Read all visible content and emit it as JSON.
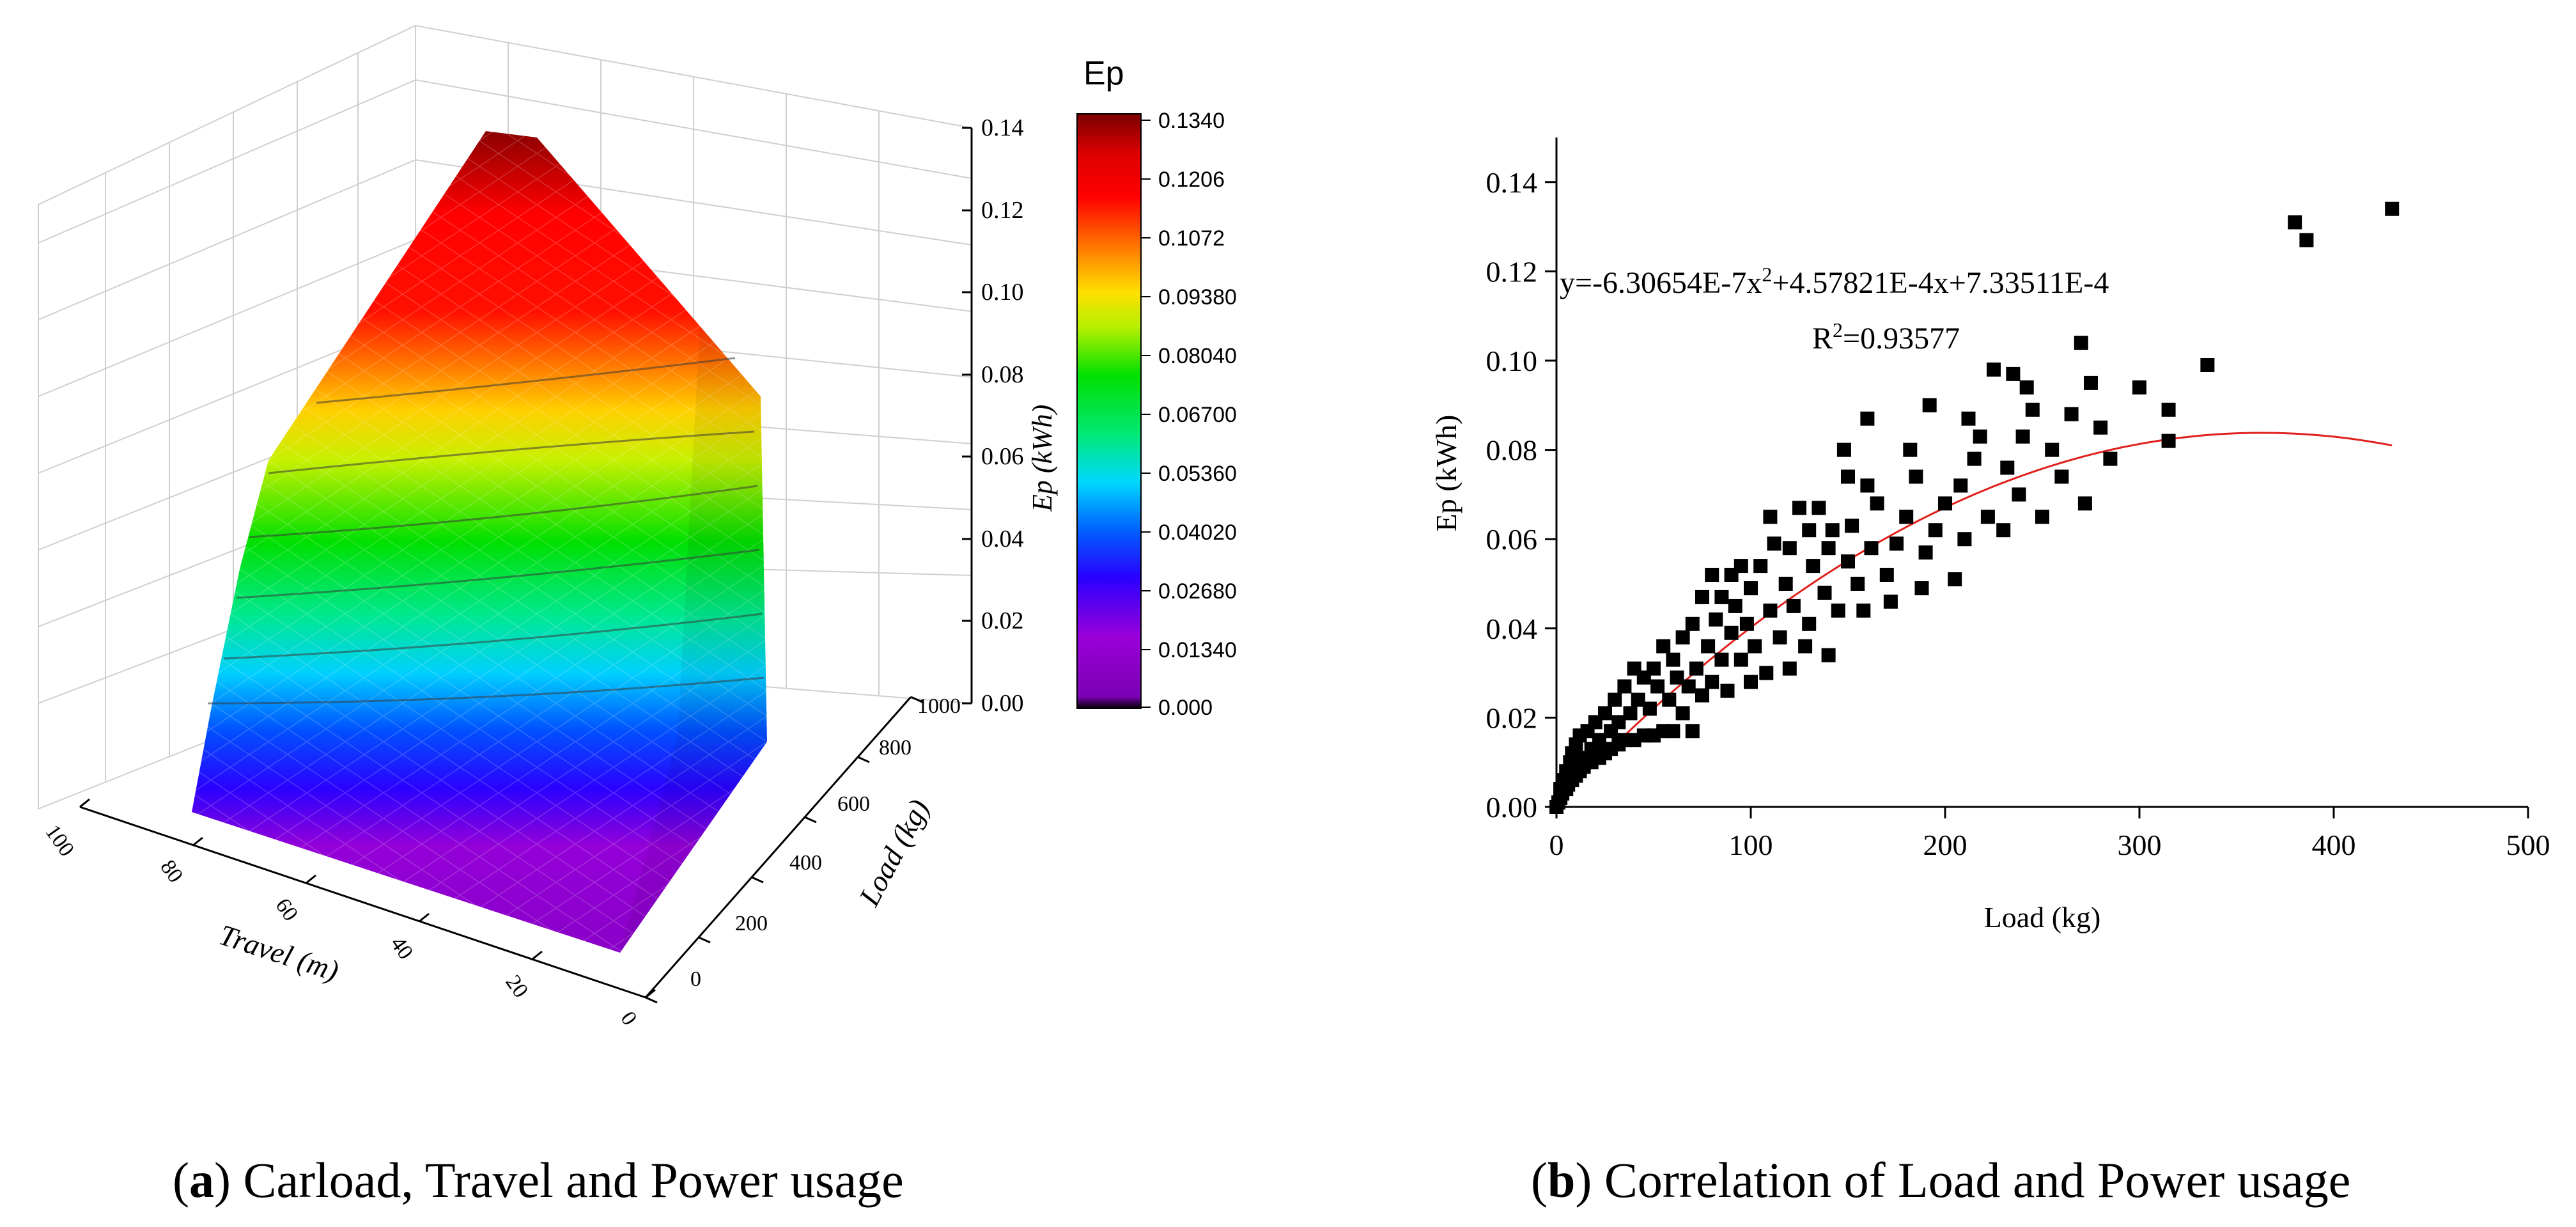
{
  "colors": {
    "fit_line": "#e0201c",
    "marker": "#000000",
    "axis": "#000000",
    "grid": "#d4d4d4"
  },
  "panel_a": {
    "caption_letter": "a",
    "caption_text": "Carload, Travel and Power usage"
  },
  "panel_b": {
    "caption_letter": "b",
    "caption_text": "Correlation of Load and Power usage"
  },
  "chart_data": [
    {
      "type": "surface3d",
      "title": "",
      "colorbar_title": "Ep",
      "colorbar_ticks": [
        "0.1340",
        "0.1206",
        "0.1072",
        "0.09380",
        "0.08040",
        "0.06700",
        "0.05360",
        "0.04020",
        "0.02680",
        "0.01340",
        "0.000"
      ],
      "colorbar_range": [
        0,
        0.134
      ],
      "x_axis": {
        "label": "Travel (m)",
        "range": [
          0,
          100
        ],
        "ticks": [
          "0",
          "20",
          "40",
          "60",
          "80",
          "100"
        ]
      },
      "y_axis": {
        "label": "Load (kg)",
        "range": [
          0,
          1000
        ],
        "ticks": [
          "0",
          "200",
          "400",
          "600",
          "800",
          "1000"
        ]
      },
      "z_axis": {
        "label": "Ep (kWh)",
        "range": [
          0,
          0.14
        ],
        "ticks": [
          "0.00",
          "0.02",
          "0.04",
          "0.06",
          "0.08",
          "0.10",
          "0.12",
          "0.14"
        ]
      },
      "surface_peak": 0.134
    },
    {
      "type": "scatter",
      "xlabel": "Load (kg)",
      "ylabel": "Ep (kWh)",
      "xlim": [
        0,
        500
      ],
      "ylim": [
        0,
        0.15
      ],
      "x_ticks": [
        "0",
        "100",
        "200",
        "300",
        "400",
        "500"
      ],
      "y_ticks": [
        "0.00",
        "0.02",
        "0.04",
        "0.06",
        "0.08",
        "0.10",
        "0.12",
        "0.14"
      ],
      "equation_text": "y=-6.30654E-7x²+4.57821E-4x+7.33511E-4",
      "r2_text": "R²=0.93577",
      "fit": {
        "a": -6.30654e-07,
        "b": 0.000457821,
        "c": 0.000733511,
        "x_range": [
          0,
          430
        ]
      },
      "points": [
        [
          0,
          0
        ],
        [
          1,
          0.001
        ],
        [
          2,
          0.002
        ],
        [
          2,
          0.004
        ],
        [
          3,
          0.003
        ],
        [
          4,
          0.006
        ],
        [
          5,
          0.004
        ],
        [
          5,
          0.008
        ],
        [
          6,
          0.005
        ],
        [
          7,
          0.01
        ],
        [
          8,
          0.006
        ],
        [
          8,
          0.012
        ],
        [
          10,
          0.007
        ],
        [
          10,
          0.014
        ],
        [
          12,
          0.008
        ],
        [
          12,
          0.016
        ],
        [
          14,
          0.009
        ],
        [
          15,
          0.011
        ],
        [
          16,
          0.017
        ],
        [
          18,
          0.01
        ],
        [
          18,
          0.013
        ],
        [
          20,
          0.019
        ],
        [
          22,
          0.011
        ],
        [
          22,
          0.015
        ],
        [
          25,
          0.012
        ],
        [
          25,
          0.021
        ],
        [
          28,
          0.013
        ],
        [
          28,
          0.017
        ],
        [
          30,
          0.024
        ],
        [
          32,
          0.014
        ],
        [
          32,
          0.019
        ],
        [
          35,
          0.015
        ],
        [
          35,
          0.027
        ],
        [
          38,
          0.021
        ],
        [
          40,
          0.015
        ],
        [
          40,
          0.031
        ],
        [
          42,
          0.024
        ],
        [
          45,
          0.016
        ],
        [
          45,
          0.029
        ],
        [
          48,
          0.022
        ],
        [
          50,
          0.016
        ],
        [
          50,
          0.031
        ],
        [
          52,
          0.027
        ],
        [
          55,
          0.017
        ],
        [
          55,
          0.036
        ],
        [
          58,
          0.024
        ],
        [
          60,
          0.017
        ],
        [
          60,
          0.033
        ],
        [
          62,
          0.029
        ],
        [
          65,
          0.038
        ],
        [
          65,
          0.021
        ],
        [
          68,
          0.027
        ],
        [
          70,
          0.017
        ],
        [
          70,
          0.041
        ],
        [
          72,
          0.031
        ],
        [
          75,
          0.025
        ],
        [
          75,
          0.047
        ],
        [
          78,
          0.036
        ],
        [
          80,
          0.028
        ],
        [
          80,
          0.052
        ],
        [
          82,
          0.042
        ],
        [
          85,
          0.033
        ],
        [
          85,
          0.047
        ],
        [
          88,
          0.026
        ],
        [
          90,
          0.039
        ],
        [
          90,
          0.052
        ],
        [
          92,
          0.045
        ],
        [
          95,
          0.033
        ],
        [
          95,
          0.054
        ],
        [
          98,
          0.041
        ],
        [
          100,
          0.028
        ],
        [
          100,
          0.049
        ],
        [
          102,
          0.036
        ],
        [
          105,
          0.054
        ],
        [
          108,
          0.03
        ],
        [
          110,
          0.044
        ],
        [
          110,
          0.065
        ],
        [
          112,
          0.059
        ],
        [
          115,
          0.038
        ],
        [
          118,
          0.05
        ],
        [
          120,
          0.031
        ],
        [
          120,
          0.058
        ],
        [
          122,
          0.045
        ],
        [
          125,
          0.067
        ],
        [
          128,
          0.036
        ],
        [
          130,
          0.062
        ],
        [
          130,
          0.041
        ],
        [
          132,
          0.054
        ],
        [
          135,
          0.067
        ],
        [
          138,
          0.048
        ],
        [
          140,
          0.034
        ],
        [
          140,
          0.058
        ],
        [
          142,
          0.062
        ],
        [
          145,
          0.044
        ],
        [
          148,
          0.08
        ],
        [
          150,
          0.074
        ],
        [
          150,
          0.055
        ],
        [
          152,
          0.063
        ],
        [
          155,
          0.05
        ],
        [
          158,
          0.044
        ],
        [
          160,
          0.087
        ],
        [
          160,
          0.072
        ],
        [
          162,
          0.058
        ],
        [
          165,
          0.068
        ],
        [
          170,
          0.052
        ],
        [
          172,
          0.046
        ],
        [
          175,
          0.059
        ],
        [
          180,
          0.065
        ],
        [
          182,
          0.08
        ],
        [
          185,
          0.074
        ],
        [
          188,
          0.049
        ],
        [
          190,
          0.057
        ],
        [
          192,
          0.09
        ],
        [
          195,
          0.062
        ],
        [
          200,
          0.068
        ],
        [
          205,
          0.051
        ],
        [
          208,
          0.072
        ],
        [
          210,
          0.06
        ],
        [
          212,
          0.087
        ],
        [
          215,
          0.078
        ],
        [
          218,
          0.083
        ],
        [
          222,
          0.065
        ],
        [
          225,
          0.098
        ],
        [
          230,
          0.062
        ],
        [
          232,
          0.076
        ],
        [
          235,
          0.097
        ],
        [
          238,
          0.07
        ],
        [
          240,
          0.083
        ],
        [
          242,
          0.094
        ],
        [
          245,
          0.089
        ],
        [
          250,
          0.065
        ],
        [
          255,
          0.08
        ],
        [
          260,
          0.074
        ],
        [
          265,
          0.088
        ],
        [
          270,
          0.104
        ],
        [
          272,
          0.068
        ],
        [
          275,
          0.095
        ],
        [
          280,
          0.085
        ],
        [
          285,
          0.078
        ],
        [
          300,
          0.094
        ],
        [
          315,
          0.089
        ],
        [
          315,
          0.082
        ],
        [
          335,
          0.099
        ],
        [
          380,
          0.131
        ],
        [
          386,
          0.127
        ],
        [
          430,
          0.134
        ]
      ]
    }
  ]
}
